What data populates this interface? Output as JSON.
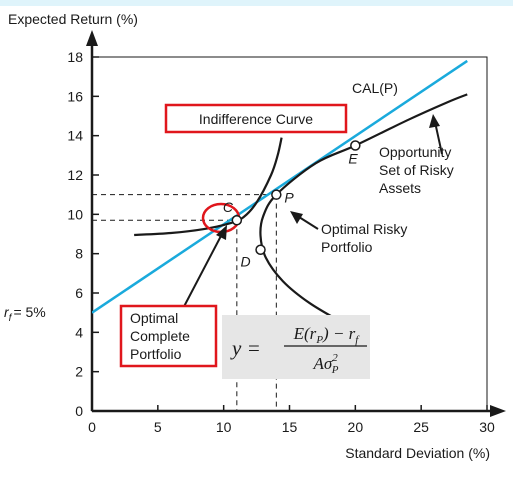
{
  "chart_data": {
    "type": "line",
    "ylabel": "Expected Return (%)",
    "xlabel": "Standard Deviation (%)",
    "xlim": [
      0,
      30
    ],
    "ylim": [
      0,
      18
    ],
    "x_ticks": [
      "0",
      "5",
      "10",
      "15",
      "20",
      "25",
      "30"
    ],
    "y_ticks": [
      "0",
      "2",
      "4",
      "6",
      "8",
      "10",
      "12",
      "14",
      "16",
      "18"
    ],
    "rf_label": "r",
    "rf_sub": "f",
    "rf_value": "= 5%",
    "rf": 5,
    "grid": false,
    "series": [
      {
        "name": "CAL(P)",
        "points": [
          [
            0,
            5
          ],
          [
            28.5,
            17.8
          ]
        ]
      },
      {
        "name": "Opportunity Set of Risky Assets",
        "points": [
          [
            19,
            4.5
          ],
          [
            16.5,
            5.5
          ],
          [
            14.5,
            6.6
          ],
          [
            13.2,
            7.8
          ],
          [
            12.8,
            8.9
          ],
          [
            13.0,
            9.9
          ],
          [
            14.0,
            11.0
          ],
          [
            17.0,
            12.6
          ],
          [
            20.0,
            13.5
          ],
          [
            24.0,
            14.8
          ],
          [
            27.0,
            15.7
          ],
          [
            28.5,
            16.1
          ]
        ]
      },
      {
        "name": "Indifference Curve",
        "points": [
          [
            3.2,
            8.95
          ],
          [
            6.0,
            9.05
          ],
          [
            8.5,
            9.25
          ],
          [
            10.5,
            9.55
          ],
          [
            11.5,
            9.85
          ],
          [
            12.5,
            10.6
          ],
          [
            13.6,
            12.0
          ],
          [
            14.1,
            13.0
          ],
          [
            14.4,
            13.9
          ]
        ]
      }
    ],
    "points": [
      {
        "label": "C",
        "x": 11.0,
        "y": 9.7
      },
      {
        "label": "P",
        "x": 14.0,
        "y": 11.0
      },
      {
        "label": "E",
        "x": 20.0,
        "y": 13.5
      },
      {
        "label": "D",
        "x": 12.8,
        "y": 8.2
      }
    ],
    "annotations": {
      "cal": "CAL(P)",
      "indifference_curve": "Indifference Curve",
      "opportunity_set": [
        "Opportunity",
        "Set of Risky",
        "Assets"
      ],
      "optimal_risky": [
        "Optimal Risky",
        "Portfolio"
      ],
      "optimal_complete": [
        "Optimal",
        "Complete",
        "Portfolio"
      ],
      "formula": {
        "lhs": "y =",
        "numerator": "E(r",
        "numerator_sub": "P",
        "numerator_tail": ") − r",
        "numerator_sub2": "f",
        "denominator": "Aσ",
        "denominator_sub": "P",
        "denominator_sup": "2"
      }
    },
    "colors": {
      "cal": "#1aaadc",
      "curve": "#1a1a1a",
      "highlight": "#e0161c",
      "formula_bg": "#e6e6e6"
    }
  }
}
